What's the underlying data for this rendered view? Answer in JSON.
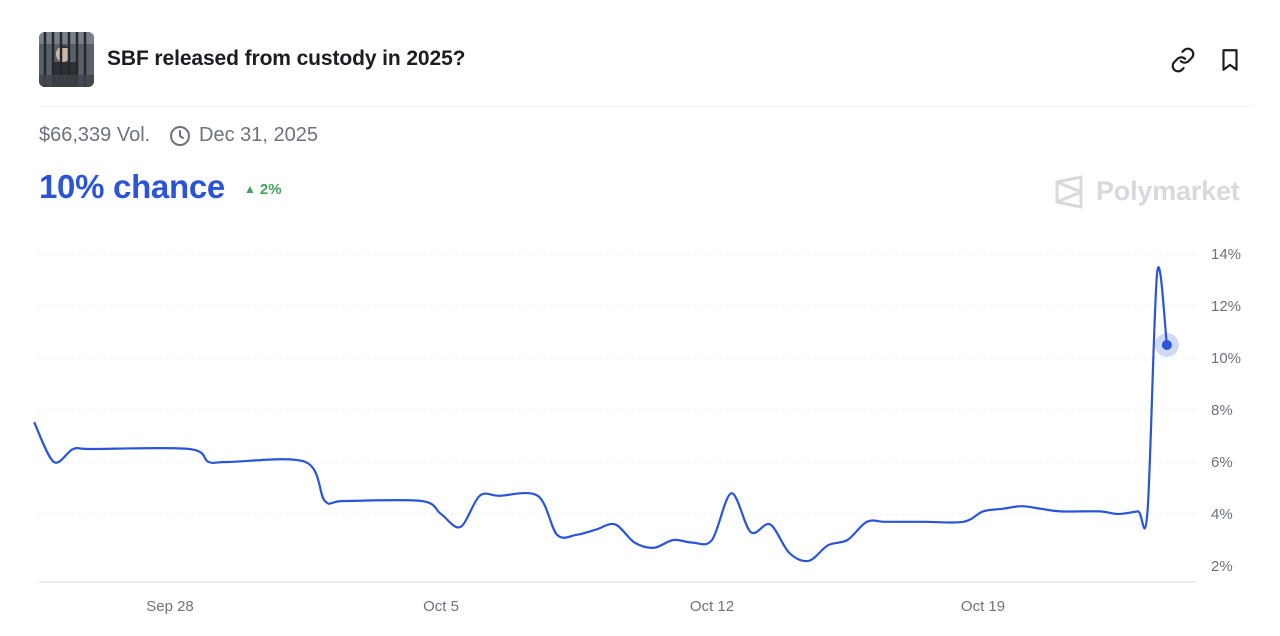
{
  "market": {
    "title": "SBF released from custody in 2025?",
    "volume": "$66,339 Vol.",
    "end_date": "Dec 31, 2025",
    "chance": "10% chance",
    "change": "2%",
    "brand": "Polymarket"
  },
  "icons": {
    "share": "link-icon",
    "save": "bookmark-icon",
    "clock": "clock-icon",
    "change": "triangle-up-icon",
    "brand": "polymarket-logo-icon"
  },
  "colors": {
    "line": "#2b55d9",
    "positive": "#3ea55a",
    "grid": "#e3e6ea",
    "tick": "#6b737d"
  },
  "chart_data": {
    "type": "line",
    "title": "",
    "xlabel": "",
    "ylabel": "",
    "x_ticks": [
      "Sep 28",
      "Oct 5",
      "Oct 12",
      "Oct 19"
    ],
    "y_ticks": [
      "2%",
      "4%",
      "6%",
      "8%",
      "10%",
      "12%",
      "14%"
    ],
    "ylim": [
      2,
      14
    ],
    "grid": true,
    "grid_style": "dotted",
    "series": [
      {
        "x": [
          "Sep 24 12:00",
          "Sep 25 00:00",
          "Sep 25 12:00",
          "Sep 26 00:00",
          "Sep 28 12:00",
          "Sep 29 00:00",
          "Sep 29 12:00",
          "Oct 1 12:00",
          "Oct 2 00:00",
          "Oct 2 12:00",
          "Oct 4 12:00",
          "Oct 5 00:00",
          "Oct 5 12:00",
          "Oct 6 00:00",
          "Oct 6 12:00",
          "Oct 7 12:00",
          "Oct 8 00:00",
          "Oct 8 12:00",
          "Oct 9 00:00",
          "Oct 9 12:00",
          "Oct 10 00:00",
          "Oct 10 12:00",
          "Oct 11 00:00",
          "Oct 11 12:00",
          "Oct 12 00:00",
          "Oct 12 12:00",
          "Oct 13 00:00",
          "Oct 13 12:00",
          "Oct 14 00:00",
          "Oct 14 12:00",
          "Oct 15 00:00",
          "Oct 15 12:00",
          "Oct 16 00:00",
          "Oct 16 12:00",
          "Oct 17 12:00",
          "Oct 18 12:00",
          "Oct 19 00:00",
          "Oct 19 12:00",
          "Oct 20 00:00",
          "Oct 20 12:00",
          "Oct 21 00:00",
          "Oct 22 00:00",
          "Oct 22 12:00",
          "Oct 23 00:00",
          "Oct 23 06:00",
          "Oct 23 12:00",
          "Oct 23 18:00"
        ],
        "values": [
          7.5,
          6.0,
          6.5,
          6.5,
          6.5,
          6.0,
          6.0,
          6.0,
          4.5,
          4.5,
          4.5,
          4.0,
          3.5,
          4.7,
          4.7,
          4.7,
          3.2,
          3.2,
          3.4,
          3.6,
          2.9,
          2.7,
          3.0,
          2.9,
          3.0,
          4.8,
          3.3,
          3.6,
          2.5,
          2.2,
          2.8,
          3.0,
          3.7,
          3.7,
          3.7,
          3.7,
          4.1,
          4.2,
          4.3,
          4.2,
          4.1,
          4.1,
          4.0,
          4.1,
          4.1,
          13.3,
          10.5
        ]
      }
    ]
  }
}
